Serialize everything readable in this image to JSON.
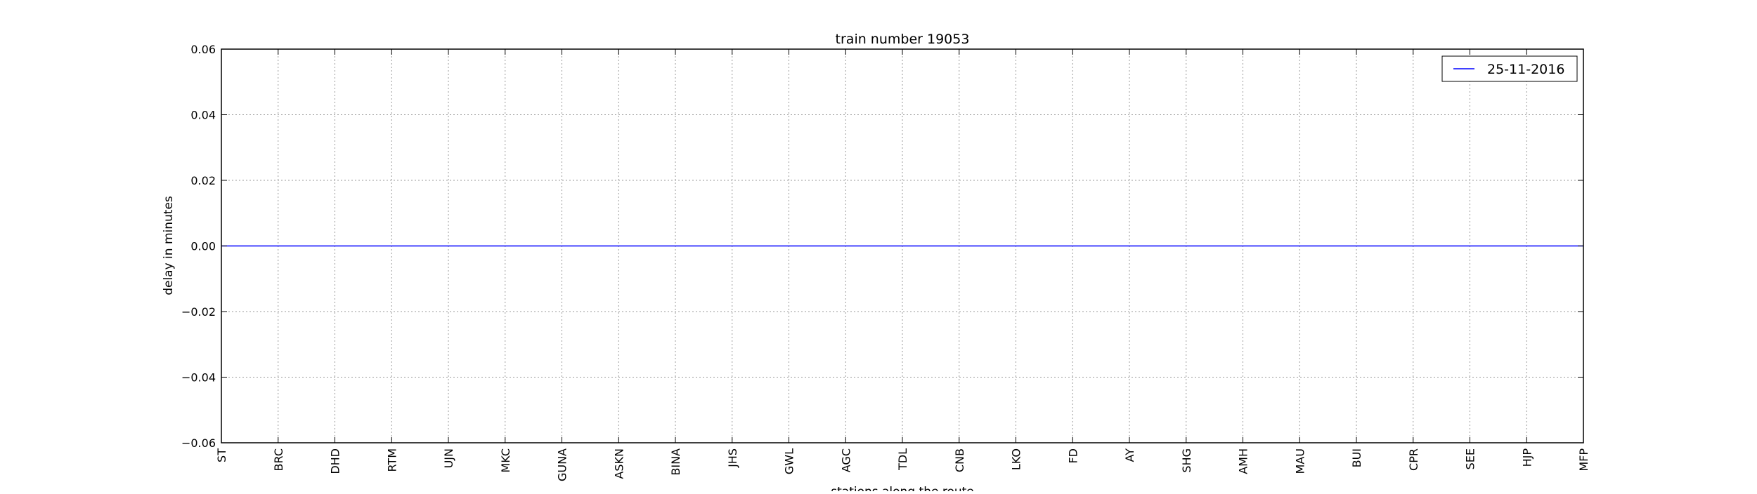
{
  "chart_data": {
    "type": "line",
    "title": "train number 19053",
    "xlabel": "stations along the route",
    "ylabel": "delay in minutes",
    "categories": [
      "ST",
      "BRC",
      "DHD",
      "RTM",
      "UJN",
      "MKC",
      "GUNA",
      "ASKN",
      "BINA",
      "JHS",
      "GWL",
      "AGC",
      "TDL",
      "CNB",
      "LKO",
      "FD",
      "AY",
      "SHG",
      "AMH",
      "MAU",
      "BUI",
      "CPR",
      "SEE",
      "HJP",
      "MFP"
    ],
    "series": [
      {
        "name": "25-11-2016",
        "color": "#0000ff",
        "values": [
          0,
          0,
          0,
          0,
          0,
          0,
          0,
          0,
          0,
          0,
          0,
          0,
          0,
          0,
          0,
          0,
          0,
          0,
          0,
          0,
          0,
          0,
          0,
          0,
          0
        ]
      }
    ],
    "ylim": [
      -0.06,
      0.06
    ],
    "yticks": [
      -0.06,
      -0.04,
      -0.02,
      0.0,
      0.02,
      0.04,
      0.06
    ],
    "ytick_labels": [
      "−0.06",
      "−0.04",
      "−0.02",
      "0.00",
      "0.02",
      "0.04",
      "0.06"
    ],
    "grid": true,
    "legend_position": "top-right"
  }
}
